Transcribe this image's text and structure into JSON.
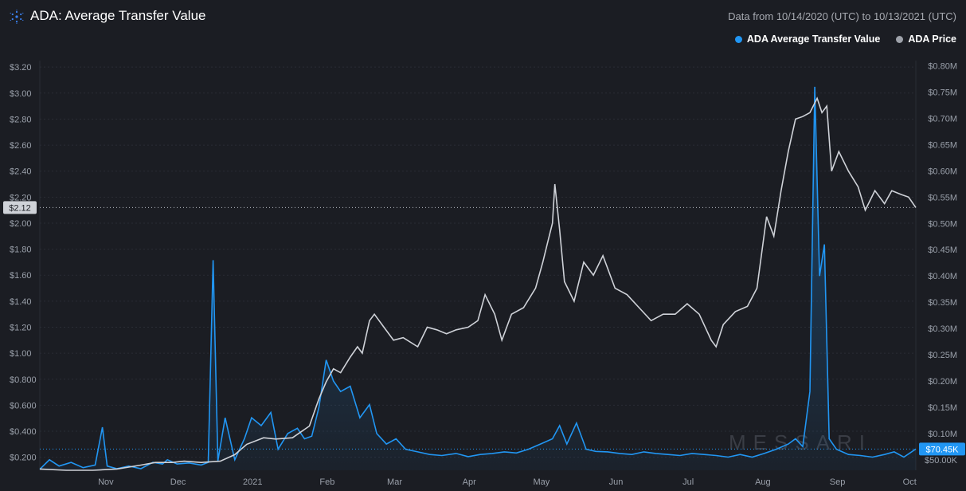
{
  "header": {
    "title": "ADA: Average Transfer Value",
    "range": "Data from 10/14/2020 (UTC) to 10/13/2021 (UTC)",
    "watermark": "MESSARI"
  },
  "colors": {
    "transfer": "#2196f3",
    "price": "#cfd2d8"
  },
  "chart_data": {
    "type": "line",
    "title": "ADA: Average Transfer Value",
    "legend": "top-right",
    "grid": true,
    "x_ticks": [
      "Nov",
      "Dec",
      "2021",
      "Feb",
      "Mar",
      "Apr",
      "May",
      "Jun",
      "Jul",
      "Aug",
      "Sep",
      "Oct"
    ],
    "left_axis": {
      "ticks": [
        "$0.200",
        "$0.400",
        "$0.600",
        "$0.800",
        "$1.00",
        "$1.20",
        "$1.40",
        "$1.60",
        "$1.80",
        "$2.00",
        "$2.20",
        "$2.40",
        "$2.60",
        "$2.80",
        "$3.00",
        "$3.20"
      ],
      "ylim": [
        0.1,
        3.25
      ]
    },
    "right_axis": {
      "ticks": [
        "$50.00K",
        "$0.10M",
        "$0.15M",
        "$0.20M",
        "$0.25M",
        "$0.30M",
        "$0.35M",
        "$0.40M",
        "$0.45M",
        "$0.50M",
        "$0.55M",
        "$0.60M",
        "$0.65M",
        "$0.70M",
        "$0.75M",
        "$0.80M"
      ],
      "ylim": [
        30000,
        810000
      ]
    },
    "series": [
      {
        "name": "ADA Price",
        "axis": "left",
        "points": [
          [
            "2020-10-14",
            0.11
          ],
          [
            "2020-10-25",
            0.1
          ],
          [
            "2020-11-05",
            0.1
          ],
          [
            "2020-11-15",
            0.11
          ],
          [
            "2020-11-25",
            0.14
          ],
          [
            "2020-12-01",
            0.16
          ],
          [
            "2020-12-08",
            0.16
          ],
          [
            "2020-12-13",
            0.17
          ],
          [
            "2020-12-20",
            0.16
          ],
          [
            "2020-12-28",
            0.17
          ],
          [
            "2021-01-03",
            0.22
          ],
          [
            "2021-01-08",
            0.3
          ],
          [
            "2021-01-15",
            0.35
          ],
          [
            "2021-01-20",
            0.34
          ],
          [
            "2021-01-27",
            0.35
          ],
          [
            "2021-02-03",
            0.44
          ],
          [
            "2021-02-07",
            0.65
          ],
          [
            "2021-02-10",
            0.78
          ],
          [
            "2021-02-13",
            0.88
          ],
          [
            "2021-02-16",
            0.85
          ],
          [
            "2021-02-20",
            0.97
          ],
          [
            "2021-02-23",
            1.05
          ],
          [
            "2021-02-25",
            1.0
          ],
          [
            "2021-02-28",
            1.25
          ],
          [
            "2021-03-02",
            1.3
          ],
          [
            "2021-03-06",
            1.2
          ],
          [
            "2021-03-10",
            1.1
          ],
          [
            "2021-03-14",
            1.12
          ],
          [
            "2021-03-20",
            1.05
          ],
          [
            "2021-03-24",
            1.2
          ],
          [
            "2021-03-28",
            1.18
          ],
          [
            "2021-04-01",
            1.15
          ],
          [
            "2021-04-05",
            1.18
          ],
          [
            "2021-04-10",
            1.2
          ],
          [
            "2021-04-14",
            1.25
          ],
          [
            "2021-04-17",
            1.45
          ],
          [
            "2021-04-21",
            1.3
          ],
          [
            "2021-04-24",
            1.1
          ],
          [
            "2021-04-28",
            1.3
          ],
          [
            "2021-05-03",
            1.35
          ],
          [
            "2021-05-08",
            1.5
          ],
          [
            "2021-05-11",
            1.7
          ],
          [
            "2021-05-13",
            1.85
          ],
          [
            "2021-05-15",
            2.0
          ],
          [
            "2021-05-16",
            2.3
          ],
          [
            "2021-05-18",
            1.95
          ],
          [
            "2021-05-20",
            1.55
          ],
          [
            "2021-05-24",
            1.4
          ],
          [
            "2021-05-28",
            1.7
          ],
          [
            "2021-06-01",
            1.6
          ],
          [
            "2021-06-05",
            1.75
          ],
          [
            "2021-06-10",
            1.5
          ],
          [
            "2021-06-15",
            1.45
          ],
          [
            "2021-06-20",
            1.35
          ],
          [
            "2021-06-25",
            1.25
          ],
          [
            "2021-06-30",
            1.3
          ],
          [
            "2021-07-05",
            1.3
          ],
          [
            "2021-07-10",
            1.38
          ],
          [
            "2021-07-15",
            1.3
          ],
          [
            "2021-07-20",
            1.1
          ],
          [
            "2021-07-22",
            1.05
          ],
          [
            "2021-07-25",
            1.22
          ],
          [
            "2021-07-30",
            1.32
          ],
          [
            "2021-08-04",
            1.36
          ],
          [
            "2021-08-08",
            1.5
          ],
          [
            "2021-08-12",
            2.05
          ],
          [
            "2021-08-15",
            1.9
          ],
          [
            "2021-08-18",
            2.25
          ],
          [
            "2021-08-21",
            2.55
          ],
          [
            "2021-08-24",
            2.8
          ],
          [
            "2021-08-27",
            2.82
          ],
          [
            "2021-08-30",
            2.85
          ],
          [
            "2021-09-02",
            2.96
          ],
          [
            "2021-09-04",
            2.85
          ],
          [
            "2021-09-06",
            2.9
          ],
          [
            "2021-09-08",
            2.4
          ],
          [
            "2021-09-11",
            2.55
          ],
          [
            "2021-09-15",
            2.4
          ],
          [
            "2021-09-19",
            2.28
          ],
          [
            "2021-09-22",
            2.1
          ],
          [
            "2021-09-26",
            2.25
          ],
          [
            "2021-09-30",
            2.15
          ],
          [
            "2021-10-03",
            2.25
          ],
          [
            "2021-10-07",
            2.22
          ],
          [
            "2021-10-10",
            2.2
          ],
          [
            "2021-10-13",
            2.12
          ]
        ]
      },
      {
        "name": "ADA Average Transfer Value",
        "axis": "right",
        "points": [
          [
            "2020-10-14",
            32000
          ],
          [
            "2020-10-18",
            50000
          ],
          [
            "2020-10-22",
            38000
          ],
          [
            "2020-10-27",
            45000
          ],
          [
            "2020-11-01",
            35000
          ],
          [
            "2020-11-06",
            40000
          ],
          [
            "2020-11-09",
            112000
          ],
          [
            "2020-11-11",
            38000
          ],
          [
            "2020-11-15",
            33000
          ],
          [
            "2020-11-20",
            38000
          ],
          [
            "2020-11-25",
            33000
          ],
          [
            "2020-11-30",
            45000
          ],
          [
            "2020-12-04",
            42000
          ],
          [
            "2020-12-06",
            50000
          ],
          [
            "2020-12-10",
            42000
          ],
          [
            "2020-12-15",
            44000
          ],
          [
            "2020-12-20",
            40000
          ],
          [
            "2020-12-23",
            45000
          ],
          [
            "2020-12-25",
            430000
          ],
          [
            "2020-12-27",
            48000
          ],
          [
            "2020-12-30",
            130000
          ],
          [
            "2021-01-03",
            50000
          ],
          [
            "2021-01-07",
            90000
          ],
          [
            "2021-01-10",
            130000
          ],
          [
            "2021-01-14",
            115000
          ],
          [
            "2021-01-18",
            140000
          ],
          [
            "2021-01-21",
            70000
          ],
          [
            "2021-01-25",
            100000
          ],
          [
            "2021-01-29",
            110000
          ],
          [
            "2021-02-01",
            90000
          ],
          [
            "2021-02-04",
            95000
          ],
          [
            "2021-02-07",
            150000
          ],
          [
            "2021-02-10",
            240000
          ],
          [
            "2021-02-13",
            200000
          ],
          [
            "2021-02-16",
            180000
          ],
          [
            "2021-02-20",
            190000
          ],
          [
            "2021-02-24",
            130000
          ],
          [
            "2021-02-28",
            155000
          ],
          [
            "2021-03-03",
            100000
          ],
          [
            "2021-03-07",
            80000
          ],
          [
            "2021-03-11",
            90000
          ],
          [
            "2021-03-15",
            70000
          ],
          [
            "2021-03-20",
            65000
          ],
          [
            "2021-03-25",
            60000
          ],
          [
            "2021-03-30",
            58000
          ],
          [
            "2021-04-05",
            62000
          ],
          [
            "2021-04-10",
            56000
          ],
          [
            "2021-04-15",
            60000
          ],
          [
            "2021-04-20",
            62000
          ],
          [
            "2021-04-25",
            65000
          ],
          [
            "2021-04-30",
            63000
          ],
          [
            "2021-05-05",
            70000
          ],
          [
            "2021-05-10",
            80000
          ],
          [
            "2021-05-15",
            90000
          ],
          [
            "2021-05-18",
            115000
          ],
          [
            "2021-05-21",
            80000
          ],
          [
            "2021-05-25",
            120000
          ],
          [
            "2021-05-29",
            70000
          ],
          [
            "2021-06-02",
            66000
          ],
          [
            "2021-06-07",
            65000
          ],
          [
            "2021-06-12",
            62000
          ],
          [
            "2021-06-17",
            60000
          ],
          [
            "2021-06-22",
            65000
          ],
          [
            "2021-06-27",
            62000
          ],
          [
            "2021-07-02",
            60000
          ],
          [
            "2021-07-07",
            58000
          ],
          [
            "2021-07-12",
            62000
          ],
          [
            "2021-07-17",
            60000
          ],
          [
            "2021-07-22",
            58000
          ],
          [
            "2021-07-27",
            55000
          ],
          [
            "2021-08-01",
            60000
          ],
          [
            "2021-08-06",
            55000
          ],
          [
            "2021-08-11",
            62000
          ],
          [
            "2021-08-16",
            70000
          ],
          [
            "2021-08-21",
            80000
          ],
          [
            "2021-08-24",
            90000
          ],
          [
            "2021-08-27",
            75000
          ],
          [
            "2021-08-30",
            180000
          ],
          [
            "2021-09-01",
            760000
          ],
          [
            "2021-09-03",
            400000
          ],
          [
            "2021-09-05",
            460000
          ],
          [
            "2021-09-07",
            90000
          ],
          [
            "2021-09-10",
            70000
          ],
          [
            "2021-09-15",
            60000
          ],
          [
            "2021-09-20",
            58000
          ],
          [
            "2021-09-25",
            55000
          ],
          [
            "2021-09-30",
            60000
          ],
          [
            "2021-10-04",
            65000
          ],
          [
            "2021-10-08",
            55000
          ],
          [
            "2021-10-13",
            70450
          ]
        ]
      }
    ],
    "current": {
      "price_label": "$2.12",
      "price_value": 2.12,
      "transfer_label": "$70.45K",
      "transfer_value": 70450
    }
  }
}
